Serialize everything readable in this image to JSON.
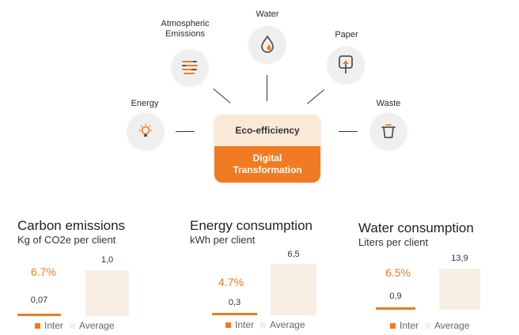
{
  "diagram": {
    "center_top": "Eco-efficiency",
    "center_bottom_line1": "Digital",
    "center_bottom_line2": "Transformation",
    "categories": {
      "energy": "Energy",
      "atmo_line1": "Atmospheric",
      "atmo_line2": "Emissions",
      "water": "Water",
      "paper": "Paper",
      "waste": "Waste"
    }
  },
  "colors": {
    "accent": "#f07b22",
    "average": "#f8eee4",
    "center_top": "#fbe9d8"
  },
  "chart_data": [
    {
      "type": "bar",
      "title": "Carbon emissions",
      "subtitle": "Kg of CO2e per client",
      "categories": [
        "Inter",
        "Average"
      ],
      "values": [
        0.07,
        1.0
      ],
      "value_labels": [
        "0,07",
        "1,0"
      ],
      "annotation": "6.7%",
      "legend": [
        "Inter",
        "Average"
      ]
    },
    {
      "type": "bar",
      "title": "Energy consumption",
      "subtitle": "kWh per client",
      "categories": [
        "Inter",
        "Average"
      ],
      "values": [
        0.3,
        6.5
      ],
      "value_labels": [
        "0,3",
        "6,5"
      ],
      "annotation": "4.7%",
      "legend": [
        "Inter",
        "Average"
      ]
    },
    {
      "type": "bar",
      "title": "Water consumption",
      "subtitle": "Liters per client",
      "categories": [
        "Inter",
        "Average"
      ],
      "values": [
        0.9,
        13.9
      ],
      "value_labels": [
        "0,9",
        "13,9"
      ],
      "annotation": "6.5%",
      "legend": [
        "Inter",
        "Average"
      ]
    }
  ]
}
